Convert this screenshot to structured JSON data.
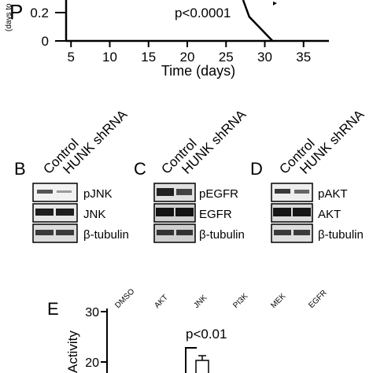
{
  "panelA": {
    "ylabel_main": "P",
    "ylabel_sub": "(days to",
    "pvalue": "p<0.0001",
    "xlabel": "Time (days)",
    "yticks": [
      "0.2",
      "0"
    ],
    "xticks": [
      "5",
      "10",
      "15",
      "20",
      "25",
      "30",
      "35"
    ],
    "series": [
      {
        "x": 28,
        "y": 0.17
      },
      {
        "x": 31,
        "y": 0
      }
    ]
  },
  "panelB": {
    "letter": "B",
    "lanes": [
      "Control",
      "HUNK shRNA"
    ],
    "rows": [
      "pJNK",
      "JNK",
      "β-tubulin"
    ]
  },
  "panelC": {
    "letter": "C",
    "lanes": [
      "Control",
      "HUNK shRNA"
    ],
    "rows": [
      "pEGFR",
      "EGFR",
      "β-tubulin"
    ]
  },
  "panelD": {
    "letter": "D",
    "lanes": [
      "Control",
      "HUNK shRNA"
    ],
    "rows": [
      "pAKT",
      "AKT",
      "β-tubulin"
    ]
  },
  "panelE": {
    "letter": "E",
    "ylabel": "Activity",
    "yticks": [
      "30",
      "20"
    ],
    "conditions": [
      "DMSO",
      "AKT",
      "JNK",
      "PI3K",
      "MEK",
      "EGFR"
    ],
    "pvalue": "p<0.01"
  }
}
